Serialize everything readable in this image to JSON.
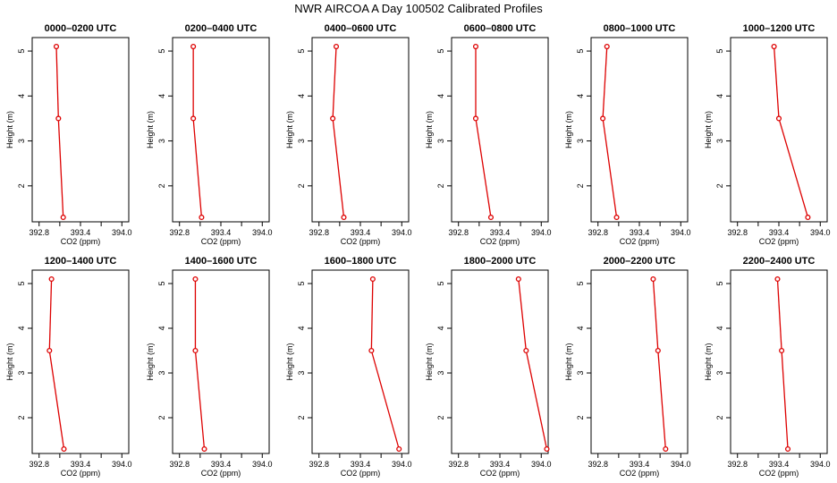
{
  "figure_title": "NWR AIRCOA A  Day 100502  Calibrated Profiles",
  "chart_data": [
    {
      "type": "line",
      "title": "0000–0200 UTC",
      "xlabel": "CO2 (ppm)",
      "ylabel": "Height (m)",
      "xlim": [
        392.7,
        394.1
      ],
      "ylim": [
        1.2,
        5.3
      ],
      "xticks": [
        "392.8",
        "393.4",
        "394.0"
      ],
      "yticks": [
        "2",
        "3",
        "4",
        "5"
      ],
      "x": [
        393.05,
        393.08,
        393.15
      ],
      "y": [
        5.1,
        3.5,
        1.3
      ]
    },
    {
      "type": "line",
      "title": "0200–0400 UTC",
      "xlabel": "CO2 (ppm)",
      "ylabel": "Height (m)",
      "xlim": [
        392.7,
        394.1
      ],
      "ylim": [
        1.2,
        5.3
      ],
      "xticks": [
        "392.8",
        "393.4",
        "394.0"
      ],
      "yticks": [
        "2",
        "3",
        "4",
        "5"
      ],
      "x": [
        393.0,
        393.0,
        393.12
      ],
      "y": [
        5.1,
        3.5,
        1.3
      ]
    },
    {
      "type": "line",
      "title": "0400–0600 UTC",
      "xlabel": "CO2 (ppm)",
      "ylabel": "Height (m)",
      "xlim": [
        392.7,
        394.1
      ],
      "ylim": [
        1.2,
        5.3
      ],
      "xticks": [
        "392.8",
        "393.4",
        "394.0"
      ],
      "yticks": [
        "2",
        "3",
        "4",
        "5"
      ],
      "x": [
        393.05,
        393.0,
        393.16
      ],
      "y": [
        5.1,
        3.5,
        1.3
      ]
    },
    {
      "type": "line",
      "title": "0600–0800 UTC",
      "xlabel": "CO2 (ppm)",
      "ylabel": "Height (m)",
      "xlim": [
        392.7,
        394.1
      ],
      "ylim": [
        1.2,
        5.3
      ],
      "xticks": [
        "392.8",
        "393.4",
        "394.0"
      ],
      "yticks": [
        "2",
        "3",
        "4",
        "5"
      ],
      "x": [
        393.05,
        393.05,
        393.27
      ],
      "y": [
        5.1,
        3.5,
        1.3
      ]
    },
    {
      "type": "line",
      "title": "0800–1000 UTC",
      "xlabel": "CO2 (ppm)",
      "ylabel": "Height (m)",
      "xlim": [
        392.7,
        394.1
      ],
      "ylim": [
        1.2,
        5.3
      ],
      "xticks": [
        "392.8",
        "393.4",
        "394.0"
      ],
      "yticks": [
        "2",
        "3",
        "4",
        "5"
      ],
      "x": [
        392.93,
        392.87,
        393.07
      ],
      "y": [
        5.1,
        3.5,
        1.3
      ]
    },
    {
      "type": "line",
      "title": "1000–1200 UTC",
      "xlabel": "CO2 (ppm)",
      "ylabel": "Height (m)",
      "xlim": [
        392.7,
        394.1
      ],
      "ylim": [
        1.2,
        5.3
      ],
      "xticks": [
        "392.8",
        "393.4",
        "394.0"
      ],
      "yticks": [
        "2",
        "3",
        "4",
        "5"
      ],
      "x": [
        393.33,
        393.4,
        393.82
      ],
      "y": [
        5.1,
        3.5,
        1.3
      ]
    },
    {
      "type": "line",
      "title": "1200–1400 UTC",
      "xlabel": "CO2 (ppm)",
      "ylabel": "Height (m)",
      "xlim": [
        392.7,
        394.1
      ],
      "ylim": [
        1.2,
        5.3
      ],
      "xticks": [
        "392.8",
        "393.4",
        "394.0"
      ],
      "yticks": [
        "2",
        "3",
        "4",
        "5"
      ],
      "x": [
        392.98,
        392.95,
        393.16
      ],
      "y": [
        5.1,
        3.5,
        1.3
      ]
    },
    {
      "type": "line",
      "title": "1400–1600 UTC",
      "xlabel": "CO2 (ppm)",
      "ylabel": "Height (m)",
      "xlim": [
        392.7,
        394.1
      ],
      "ylim": [
        1.2,
        5.3
      ],
      "xticks": [
        "392.8",
        "393.4",
        "394.0"
      ],
      "yticks": [
        "2",
        "3",
        "4",
        "5"
      ],
      "x": [
        393.03,
        393.03,
        393.16
      ],
      "y": [
        5.1,
        3.5,
        1.3
      ]
    },
    {
      "type": "line",
      "title": "1600–1800 UTC",
      "xlabel": "CO2 (ppm)",
      "ylabel": "Height (m)",
      "xlim": [
        392.7,
        394.1
      ],
      "ylim": [
        1.2,
        5.3
      ],
      "xticks": [
        "392.8",
        "393.4",
        "394.0"
      ],
      "yticks": [
        "2",
        "3",
        "4",
        "5"
      ],
      "x": [
        393.58,
        393.56,
        393.96
      ],
      "y": [
        5.1,
        3.5,
        1.3
      ]
    },
    {
      "type": "line",
      "title": "1800–2000 UTC",
      "xlabel": "CO2 (ppm)",
      "ylabel": "Height (m)",
      "xlim": [
        392.7,
        394.1
      ],
      "ylim": [
        1.2,
        5.3
      ],
      "xticks": [
        "392.8",
        "393.4",
        "394.0"
      ],
      "yticks": [
        "2",
        "3",
        "4",
        "5"
      ],
      "x": [
        393.67,
        393.78,
        394.08
      ],
      "y": [
        5.1,
        3.5,
        1.3
      ]
    },
    {
      "type": "line",
      "title": "2000–2200 UTC",
      "xlabel": "CO2 (ppm)",
      "ylabel": "Height (m)",
      "xlim": [
        392.7,
        394.1
      ],
      "ylim": [
        1.2,
        5.3
      ],
      "xticks": [
        "392.8",
        "393.4",
        "394.0"
      ],
      "yticks": [
        "2",
        "3",
        "4",
        "5"
      ],
      "x": [
        393.6,
        393.67,
        393.78
      ],
      "y": [
        5.1,
        3.5,
        1.3
      ]
    },
    {
      "type": "line",
      "title": "2200–2400 UTC",
      "xlabel": "CO2 (ppm)",
      "ylabel": "Height (m)",
      "xlim": [
        392.7,
        394.1
      ],
      "ylim": [
        1.2,
        5.3
      ],
      "xticks": [
        "392.8",
        "393.4",
        "394.0"
      ],
      "yticks": [
        "2",
        "3",
        "4",
        "5"
      ],
      "x": [
        393.38,
        393.44,
        393.53
      ],
      "y": [
        5.1,
        3.5,
        1.3
      ]
    }
  ],
  "colors": {
    "line": "#dd0000",
    "axis": "#000000"
  }
}
